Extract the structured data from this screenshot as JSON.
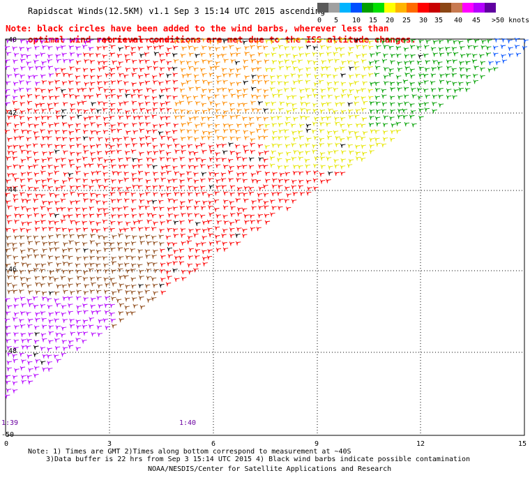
{
  "title": "Rapidscat Winds(12.5KM) v1.1 Sep  3 15:14 UTC 2015 ascending",
  "scale": {
    "colors": [
      "#5a5a5a",
      "#a0a0a0",
      "#00b4ff",
      "#0050ff",
      "#00a000",
      "#00e000",
      "#ffff00",
      "#ffb400",
      "#ff6a00",
      "#ff0000",
      "#c80000",
      "#8c4614",
      "#c87a50",
      "#ff00ff",
      "#b400ff",
      "#6000a0"
    ],
    "labels": [
      "0",
      "5",
      "10",
      "15",
      "20",
      "25",
      "30",
      "35",
      "40",
      "45",
      ">50 knots"
    ]
  },
  "notice_line1": "Note: black circles have been added to the wind barbs, wherever less than",
  "notice_line2": "optimal wind retrieval conditions are met due to the ISS altitude changes.",
  "lat_labels": [
    "-40",
    "-42",
    "-44",
    "-46",
    "-48",
    "-50"
  ],
  "lon_labels": [
    "0",
    "3",
    "6",
    "9",
    "12",
    "15"
  ],
  "time_labels": [
    "1:39",
    "1:40"
  ],
  "footer_line1": "Note: 1) Times are GMT 2)Times along bottom correspond to measurement at ~40S",
  "footer_line2": "3)Data buffer is 22 hrs from Sep  3 15:14 UTC 2015 4) Black wind barbs indicate possible contamination",
  "footer_line3": "NOAA/NESDIS/Center for Satellite Applications and Research",
  "map": {
    "lon_range": [
      0,
      15
    ],
    "lat_range": [
      -50,
      -40
    ],
    "gridlines": "dotted",
    "colors": {
      "purple": "#b400ff",
      "brown": "#8c4614",
      "red": "#ff0000",
      "orange": "#ff8c00",
      "yellow": "#e6e600",
      "green": "#00a000",
      "blue": "#0050ff",
      "black": "#000000"
    }
  }
}
